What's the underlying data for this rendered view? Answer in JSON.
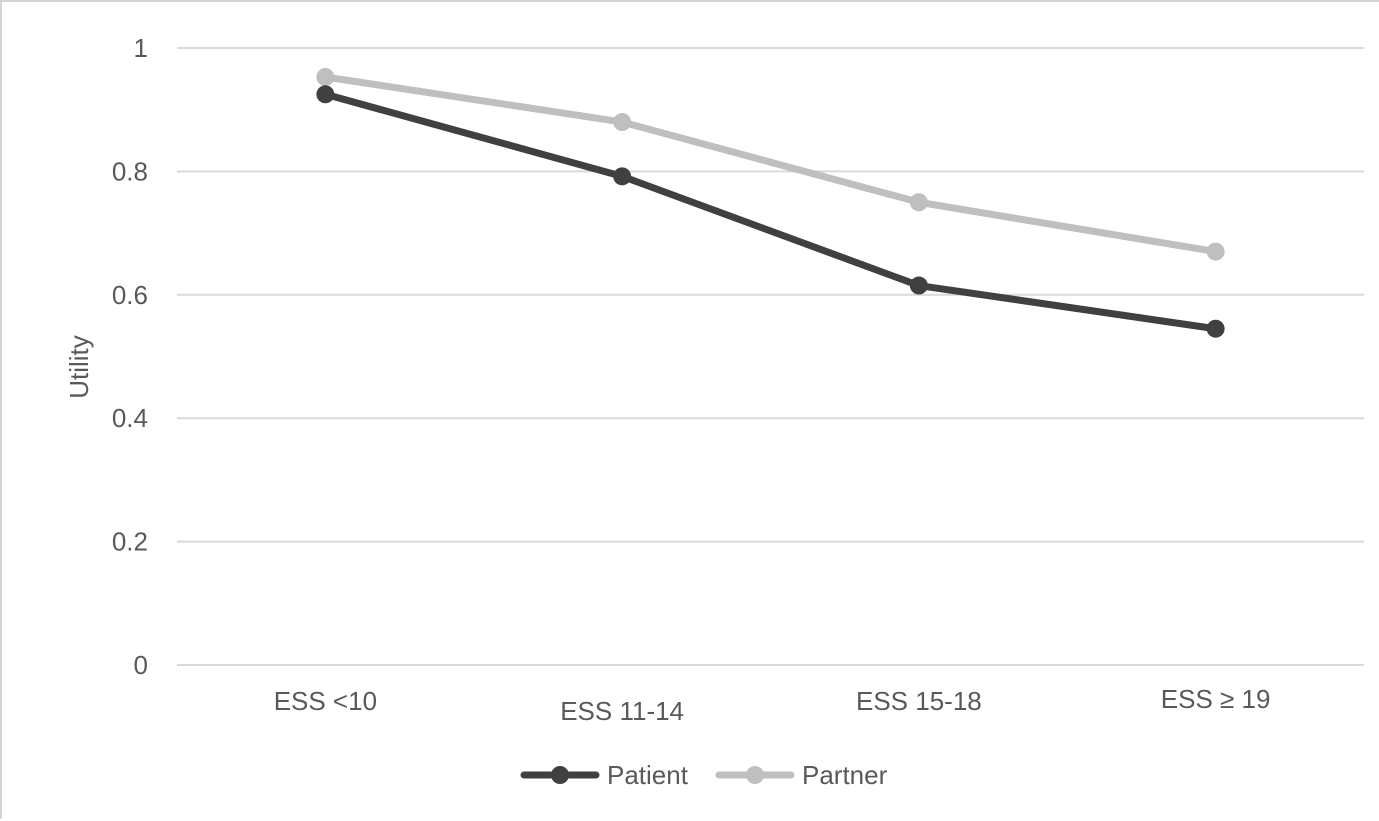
{
  "chart_data": {
    "type": "line",
    "title": "",
    "xlabel": "",
    "ylabel": "Utility",
    "ylim": [
      0,
      1
    ],
    "yticks": [
      "0",
      "0.2",
      "0.4",
      "0.6",
      "0.8",
      "1"
    ],
    "grid": true,
    "legend": "bottom",
    "categories": [
      "ESS <10",
      "ESS 11-14",
      "ESS 15-18",
      "ESS ≥ 19"
    ],
    "series": [
      {
        "name": "Patient",
        "color": "#404040",
        "values": [
          0.925,
          0.792,
          0.615,
          0.545
        ]
      },
      {
        "name": "Partner",
        "color": "#bfbfbf",
        "values": [
          0.953,
          0.88,
          0.75,
          0.67
        ]
      }
    ]
  }
}
